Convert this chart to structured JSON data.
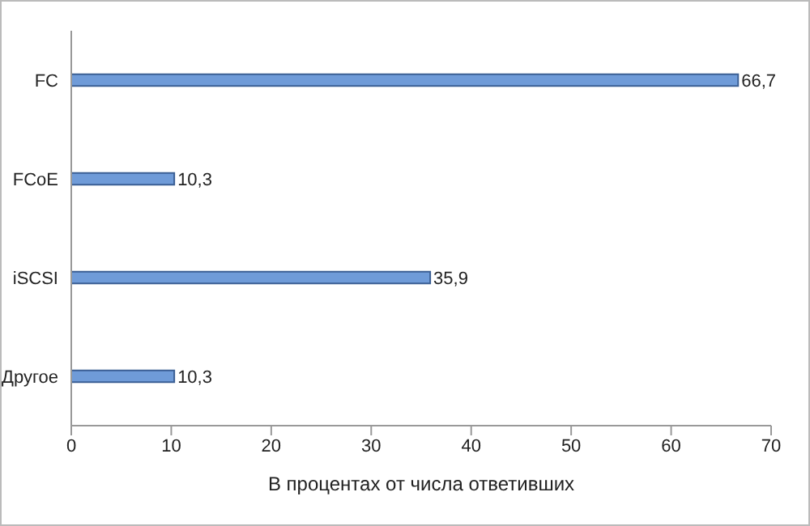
{
  "chart_data": {
    "type": "bar",
    "orientation": "horizontal",
    "categories": [
      "FC",
      "FCoE",
      "iSCSI",
      "Другое"
    ],
    "values": [
      66.7,
      10.3,
      35.9,
      10.3
    ],
    "value_labels": [
      "66,7",
      "10,3",
      "35,9",
      "10,3"
    ],
    "color": "#6f9bd8",
    "xlabel": "В процентах от числа ответивших",
    "xlim": [
      0,
      70
    ],
    "xticks": [
      0,
      10,
      20,
      30,
      40,
      50,
      60,
      70
    ],
    "grid": false,
    "legend": false
  }
}
